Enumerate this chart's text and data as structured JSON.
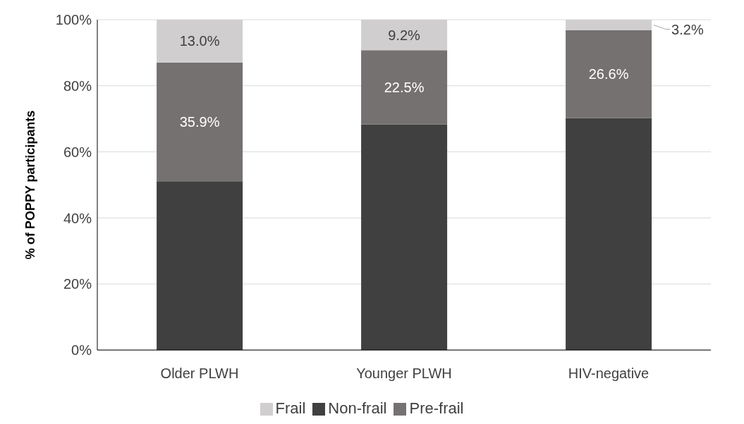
{
  "chart_data": {
    "type": "bar",
    "stacked": true,
    "ylabel": "% of POPPY participants",
    "categories": [
      "Older PLWH",
      "Younger PLWH",
      "HIV-negative"
    ],
    "series": [
      {
        "name": "Non-frail",
        "color": "#404040",
        "values": [
          51.1,
          68.3,
          70.2
        ],
        "value_labels": [
          null,
          null,
          null
        ]
      },
      {
        "name": "Pre-frail",
        "color": "#767171",
        "values": [
          35.9,
          22.5,
          26.6
        ],
        "value_labels": [
          "35.9%",
          "22.5%",
          "26.6%"
        ]
      },
      {
        "name": "Frail",
        "color": "#d0cece",
        "values": [
          13.0,
          9.2,
          3.2
        ],
        "value_labels": [
          "13.0%",
          "9.2%",
          "3.2%"
        ]
      }
    ],
    "ylim": [
      0,
      100
    ],
    "yticks": [
      {
        "value": 0,
        "label": "0%"
      },
      {
        "value": 20,
        "label": "20%"
      },
      {
        "value": 40,
        "label": "40%"
      },
      {
        "value": 60,
        "label": "60%"
      },
      {
        "value": 80,
        "label": "80%"
      },
      {
        "value": 100,
        "label": "100%"
      }
    ],
    "grid": "y",
    "legend": "bottom"
  }
}
